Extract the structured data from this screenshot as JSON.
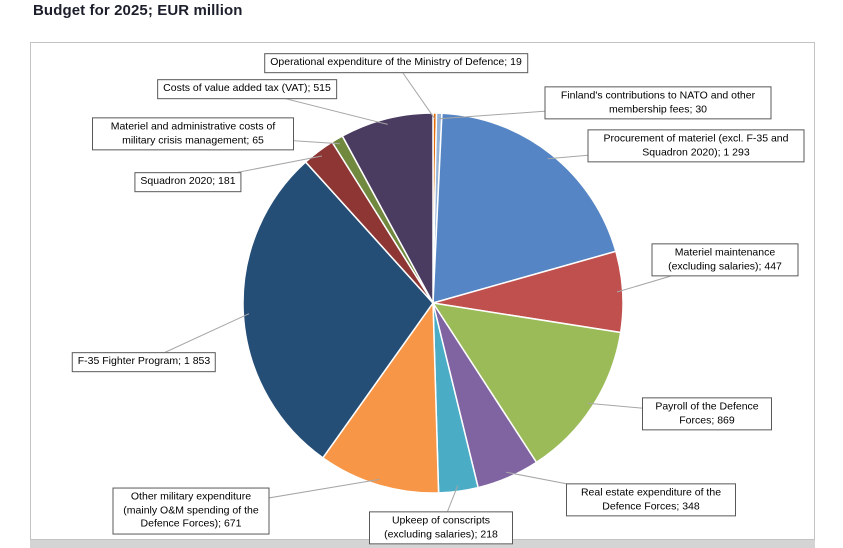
{
  "page": {
    "title": "Budget for 2025; EUR million"
  },
  "chart_data": {
    "type": "pie",
    "title": "Budget for 2025; EUR million",
    "unit": "EUR million",
    "start_angle_deg": 0,
    "direction": "clockwise",
    "legend_position": "callout-labels",
    "slices": [
      {
        "id": "operational",
        "label": "Operational expenditure of the Ministry of Defence",
        "value": 19,
        "display": "Operational expenditure of the Ministry of Defence; 19",
        "color": "#E36C09"
      },
      {
        "id": "nato",
        "label": "Finland's contributions to NATO and other membership fees",
        "value": 30,
        "display": "Finland's contributions to NATO and other membership fees; 30",
        "color": "#95B3D7"
      },
      {
        "id": "procurement",
        "label": "Procurement of materiel (excl. F-35 and Squadron 2020)",
        "value": 1293,
        "display": "Procurement of materiel (excl. F-35 and Squadron 2020); 1 293",
        "color": "#5585C4"
      },
      {
        "id": "maint",
        "label": "Materiel maintenance (excluding salaries)",
        "value": 447,
        "display": "Materiel maintenance (excluding salaries); 447",
        "color": "#C0504D"
      },
      {
        "id": "payroll",
        "label": "Payroll of the Defence Forces",
        "value": 869,
        "display": "Payroll of the Defence Forces; 869",
        "color": "#9BBB59"
      },
      {
        "id": "realestate",
        "label": "Real estate expenditure of the Defence Forces",
        "value": 348,
        "display": "Real estate expenditure of the Defence Forces; 348",
        "color": "#8064A2"
      },
      {
        "id": "conscripts",
        "label": "Upkeep of conscripts (excluding salaries)",
        "value": 218,
        "display": "Upkeep of conscripts (excluding salaries); 218",
        "color": "#4BACC6"
      },
      {
        "id": "other",
        "label": "Other military expenditure (mainly O&M spending of the Defence Forces)",
        "value": 671,
        "display": "Other military expenditure (mainly O&M spending of the Defence Forces); 671",
        "color": "#F79646"
      },
      {
        "id": "f35",
        "label": "F-35 Fighter Program",
        "value": 1853,
        "display": "F-35 Fighter Program; 1 853",
        "color": "#254E77"
      },
      {
        "id": "squadron",
        "label": "Squadron 2020",
        "value": 181,
        "display": "Squadron 2020; 181",
        "color": "#8E3634"
      },
      {
        "id": "crisis",
        "label": "Materiel and administrative costs of military crisis management",
        "value": 65,
        "display": "Materiel and administrative costs of military crisis management; 65",
        "color": "#71893F"
      },
      {
        "id": "vat",
        "label": "Costs of value added tax (VAT)",
        "value": 515,
        "display": "Costs of value added tax (VAT); 515",
        "color": "#4A3B60"
      }
    ]
  }
}
